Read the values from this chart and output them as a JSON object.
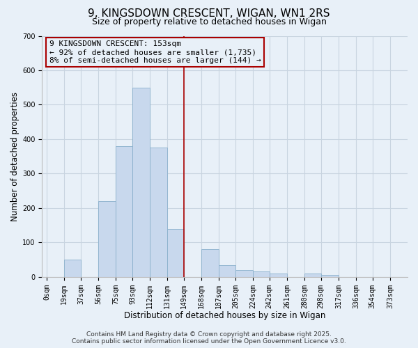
{
  "title": "9, KINGSDOWN CRESCENT, WIGAN, WN1 2RS",
  "subtitle": "Size of property relative to detached houses in Wigan",
  "xlabel": "Distribution of detached houses by size in Wigan",
  "ylabel": "Number of detached properties",
  "bar_left_edges": [
    0,
    19,
    37,
    56,
    75,
    93,
    112,
    131,
    149,
    168,
    187,
    205,
    224,
    242,
    261,
    280,
    298,
    317,
    336,
    354
  ],
  "bar_widths": [
    19,
    18,
    19,
    19,
    18,
    19,
    19,
    18,
    19,
    19,
    18,
    19,
    18,
    19,
    19,
    18,
    19,
    19,
    18,
    19
  ],
  "bar_heights": [
    0,
    50,
    0,
    220,
    380,
    550,
    375,
    140,
    0,
    80,
    35,
    20,
    15,
    10,
    0,
    10,
    5,
    0,
    0,
    0
  ],
  "bar_color": "#c8d8ed",
  "bar_edgecolor": "#8ab0cc",
  "x_tick_labels": [
    "0sqm",
    "19sqm",
    "37sqm",
    "56sqm",
    "75sqm",
    "93sqm",
    "112sqm",
    "131sqm",
    "149sqm",
    "168sqm",
    "187sqm",
    "205sqm",
    "224sqm",
    "242sqm",
    "261sqm",
    "280sqm",
    "298sqm",
    "317sqm",
    "336sqm",
    "354sqm",
    "373sqm"
  ],
  "x_tick_positions": [
    0,
    19,
    37,
    56,
    75,
    93,
    112,
    131,
    149,
    168,
    187,
    205,
    224,
    242,
    261,
    280,
    298,
    317,
    336,
    354,
    373
  ],
  "ylim": [
    0,
    700
  ],
  "xlim": [
    -5,
    392
  ],
  "vline_x": 149,
  "vline_color": "#aa0000",
  "grid_color": "#c8d4e0",
  "background_color": "#e8f0f8",
  "annotation_title": "9 KINGSDOWN CRESCENT: 153sqm",
  "annotation_line1": "← 92% of detached houses are smaller (1,735)",
  "annotation_line2": "8% of semi-detached houses are larger (144) →",
  "annotation_box_facecolor": "#e8f0f8",
  "annotation_box_edgecolor": "#aa0000",
  "footer_line1": "Contains HM Land Registry data © Crown copyright and database right 2025.",
  "footer_line2": "Contains public sector information licensed under the Open Government Licence v3.0.",
  "title_fontsize": 11,
  "subtitle_fontsize": 9,
  "axis_label_fontsize": 8.5,
  "tick_fontsize": 7,
  "annotation_fontsize": 8,
  "footer_fontsize": 6.5
}
